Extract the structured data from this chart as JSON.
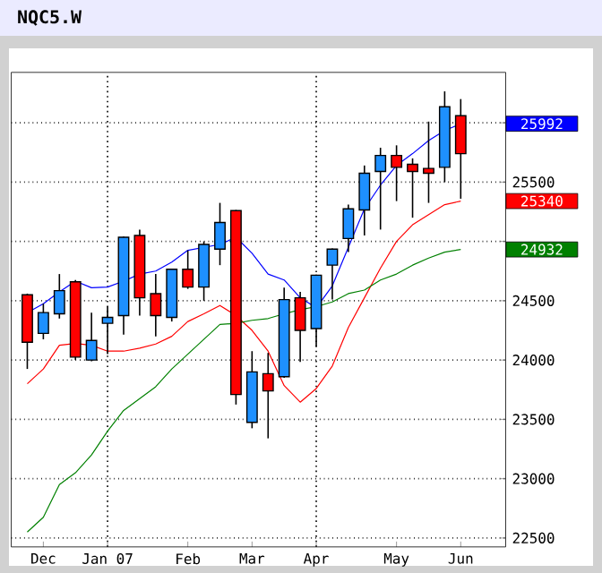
{
  "chart_data": {
    "type": "candlestick",
    "title": "NQC5.W",
    "categories": [
      null,
      "Dec",
      null,
      null,
      null,
      "Jan 07",
      null,
      null,
      null,
      null,
      "Feb",
      null,
      null,
      null,
      "Mar",
      null,
      null,
      null,
      "Apr",
      null,
      null,
      null,
      null,
      "May",
      null,
      null,
      null,
      "Jun"
    ],
    "ohlc": [
      [
        24550,
        24560,
        23925,
        24150
      ],
      [
        24225,
        24475,
        24175,
        24400
      ],
      [
        24390,
        24725,
        24350,
        24585
      ],
      [
        24660,
        24675,
        24000,
        24025
      ],
      [
        24000,
        24400,
        23990,
        24165
      ],
      [
        24310,
        24450,
        24050,
        24360
      ],
      [
        24375,
        25040,
        24215,
        25035
      ],
      [
        25050,
        25100,
        24375,
        24525
      ],
      [
        24560,
        24725,
        24200,
        24375
      ],
      [
        24360,
        24770,
        24325,
        24765
      ],
      [
        24765,
        24925,
        24600,
        24615
      ],
      [
        24615,
        25000,
        24500,
        24975
      ],
      [
        24935,
        25325,
        24800,
        25160
      ],
      [
        25260,
        25265,
        23625,
        23710
      ],
      [
        23475,
        24075,
        23425,
        23900
      ],
      [
        23885,
        24060,
        23340,
        23740
      ],
      [
        23860,
        24610,
        23850,
        24510
      ],
      [
        24525,
        24575,
        23985,
        24250
      ],
      [
        24265,
        24720,
        24115,
        24715
      ],
      [
        24800,
        24940,
        24510,
        24935
      ],
      [
        25025,
        25310,
        24910,
        25275
      ],
      [
        25265,
        25640,
        25050,
        25575
      ],
      [
        25590,
        25790,
        25100,
        25725
      ],
      [
        25725,
        25810,
        25340,
        25625
      ],
      [
        25650,
        25700,
        25200,
        25590
      ],
      [
        25615,
        26010,
        25325,
        25575
      ],
      [
        25625,
        26265,
        25500,
        26135
      ],
      [
        26060,
        26200,
        25360,
        25740
      ]
    ],
    "colors": [
      "#ff0000",
      "#1e90ff",
      "#1e90ff",
      "#ff0000",
      "#1e90ff",
      "#1e90ff",
      "#1e90ff",
      "#ff0000",
      "#ff0000",
      "#1e90ff",
      "#ff0000",
      "#1e90ff",
      "#1e90ff",
      "#ff0000",
      "#1e90ff",
      "#ff0000",
      "#1e90ff",
      "#ff0000",
      "#1e90ff",
      "#1e90ff",
      "#1e90ff",
      "#1e90ff",
      "#1e90ff",
      "#ff0000",
      "#ff0000",
      "#ff0000",
      "#1e90ff",
      "#ff0000"
    ],
    "series": [
      {
        "type": "line",
        "color": "#0000ff",
        "values": [
          24400,
          24475,
          24575,
          24665,
          24610,
          24615,
          24665,
          24725,
          24750,
          24825,
          24925,
          24950,
          24975,
          25035,
          24900,
          24725,
          24675,
          24525,
          24440,
          24625,
          24950,
          25275,
          25475,
          25640,
          25740,
          25850,
          25935,
          25992
        ]
      },
      {
        "type": "line",
        "color": "#ff0000",
        "values": [
          23800,
          23925,
          24125,
          24140,
          24125,
          24075,
          24075,
          24100,
          24135,
          24200,
          24325,
          24390,
          24460,
          24375,
          24250,
          24075,
          23785,
          23645,
          23760,
          23950,
          24275,
          24525,
          24775,
          25000,
          25140,
          25225,
          25310,
          25340
        ]
      },
      {
        "type": "line",
        "color": "#008000",
        "values": [
          22550,
          22675,
          22950,
          23050,
          23200,
          23400,
          23575,
          23675,
          23775,
          23925,
          24050,
          24175,
          24300,
          24310,
          24335,
          24350,
          24390,
          24425,
          24450,
          24490,
          24560,
          24590,
          24675,
          24725,
          24800,
          24860,
          24910,
          24932
        ]
      }
    ],
    "annotations": [
      "25992",
      "25340",
      "24932"
    ],
    "ylim": [
      22425,
      26425
    ],
    "yticks": [
      22500,
      23000,
      23500,
      24000,
      24500,
      {
        "value": 25000,
        "label": null
      },
      25500,
      {
        "value": 26000,
        "label": null
      }
    ],
    "grid": "y",
    "ref_lines": [
      {
        "axis": "x",
        "value": "Jan 07",
        "line_style": "dotted"
      },
      {
        "axis": "x",
        "value": "Apr",
        "line_style": "dotted"
      }
    ]
  }
}
